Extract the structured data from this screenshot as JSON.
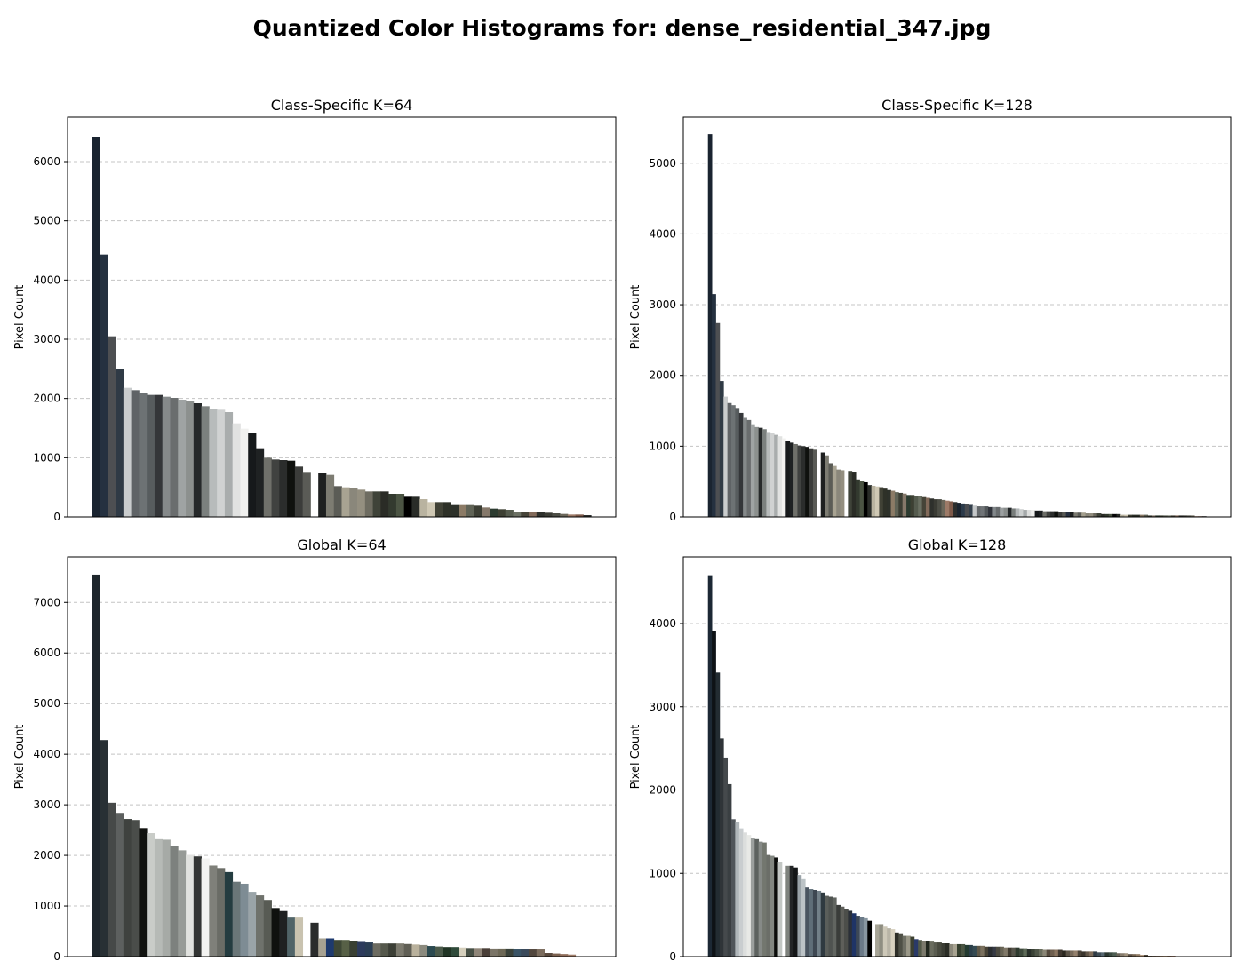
{
  "figure": {
    "title": "Quantized Color Histograms for: dense_residential_347.jpg"
  },
  "chart_data": [
    {
      "type": "bar",
      "title": "Class-Specific K=64",
      "xlabel": "",
      "ylabel": "Pixel Count",
      "ylim": [
        0,
        6750
      ],
      "yticks": [
        0,
        1000,
        2000,
        3000,
        4000,
        5000,
        6000
      ],
      "grid": "y-dashed",
      "xticks": "none",
      "values": [
        6420,
        4430,
        3050,
        2500,
        2180,
        2140,
        2090,
        2060,
        2060,
        2030,
        2010,
        1980,
        1950,
        1920,
        1870,
        1830,
        1810,
        1770,
        1580,
        1490,
        1420,
        1160,
        1000,
        970,
        960,
        950,
        850,
        760,
        0,
        740,
        710,
        520,
        500,
        490,
        460,
        430,
        430,
        430,
        390,
        390,
        340,
        340,
        300,
        250,
        250,
        250,
        200,
        200,
        200,
        190,
        160,
        140,
        130,
        120,
        90,
        90,
        80,
        80,
        70,
        60,
        50,
        40,
        40,
        30
      ],
      "colors": [
        "#1a2430",
        "#253140",
        "#4d4f52",
        "#2f3a45",
        "#c9cccd",
        "#5f6366",
        "#6d7274",
        "#575c5e",
        "#343639",
        "#85898a",
        "#6a6d6e",
        "#9fa3a3",
        "#8c908e",
        "#26292a",
        "#7b807e",
        "#b7bbbb",
        "#d0d2d2",
        "#a9adad",
        "#e1e2e1",
        "#f1f1ef",
        "#16191b",
        "#1f2223",
        "#6f706a",
        "#404240",
        "#2b2d2c",
        "#0f110e",
        "#3b3c3a",
        "#5a5b56",
        "#ffffff",
        "#1e2020",
        "#7d7c72",
        "#5b5c56",
        "#a8a392",
        "#8a877b",
        "#948f80",
        "#6e6c61",
        "#3f4339",
        "#2a2c26",
        "#333a2f",
        "#4b5443",
        "#000000",
        "#292c28",
        "#b9b3a0",
        "#cfc8b4",
        "#414236",
        "#2e3128",
        "#2d312a",
        "#8c7b66",
        "#606356",
        "#3c3e34",
        "#85786a",
        "#2c3b30",
        "#3d4033",
        "#555b4e",
        "#6b7063",
        "#464438",
        "#826a5a",
        "#2e302c",
        "#3a3b34",
        "#4d4e46",
        "#6b675a",
        "#9d7a67",
        "#7e5a4a",
        "#2d2f2e"
      ]
    },
    {
      "type": "bar",
      "title": "Class-Specific K=128",
      "xlabel": "",
      "ylabel": "Pixel Count",
      "ylim": [
        0,
        5650
      ],
      "yticks": [
        0,
        1000,
        2000,
        3000,
        4000,
        5000
      ],
      "grid": "y-dashed",
      "xticks": "none",
      "values": [
        5410,
        3150,
        2740,
        1920,
        1700,
        1610,
        1580,
        1540,
        1470,
        1400,
        1370,
        1310,
        1270,
        1260,
        1240,
        1200,
        1190,
        1160,
        1140,
        1110,
        1080,
        1050,
        1030,
        1010,
        1000,
        990,
        970,
        950,
        930,
        910,
        870,
        760,
        720,
        670,
        660,
        0,
        650,
        640,
        530,
        510,
        490,
        450,
        440,
        430,
        420,
        400,
        380,
        370,
        350,
        340,
        330,
        310,
        310,
        300,
        290,
        280,
        270,
        260,
        250,
        250,
        240,
        230,
        220,
        210,
        200,
        190,
        180,
        170,
        160,
        150,
        150,
        150,
        140,
        140,
        140,
        130,
        130,
        130,
        120,
        120,
        110,
        100,
        100,
        100,
        90,
        90,
        80,
        80,
        80,
        80,
        70,
        70,
        70,
        70,
        60,
        60,
        60,
        50,
        50,
        50,
        50,
        40,
        40,
        40,
        40,
        40,
        30,
        30,
        30,
        30,
        30,
        30,
        30,
        20,
        20,
        20,
        20,
        20,
        20,
        20,
        20,
        20,
        20,
        20,
        20,
        10,
        10,
        10
      ],
      "colors": [
        "#1a2430",
        "#253140",
        "#4d4f52",
        "#2f3a45",
        "#c9cccd",
        "#5f6366",
        "#6d7274",
        "#575c5e",
        "#343639",
        "#85898a",
        "#6a6d6e",
        "#9fa3a3",
        "#8c908e",
        "#26292a",
        "#7b807e",
        "#b7bbbb",
        "#d0d2d2",
        "#a9adad",
        "#e1e2e1",
        "#f1f1ef",
        "#16191b",
        "#1f2223",
        "#6f706a",
        "#404240",
        "#2b2d2c",
        "#0f110e",
        "#3b3c3a",
        "#5a5b56",
        "#ffffff",
        "#1e2020",
        "#7d7c72",
        "#5b5c56",
        "#a8a392",
        "#8a877b",
        "#948f80",
        "#6e6c61",
        "#3f4339",
        "#2a2c26",
        "#333a2f",
        "#4b5443",
        "#000000",
        "#292c28",
        "#b9b3a0",
        "#cfc8b4",
        "#414236",
        "#2e3128",
        "#2d312a",
        "#8c7b66",
        "#606356",
        "#3c3e34",
        "#85786a",
        "#2c3b30",
        "#3d4033",
        "#555b4e",
        "#6b7063",
        "#464438",
        "#826a5a",
        "#2e302c",
        "#3a3b34",
        "#4d4e46",
        "#6b675a",
        "#9d7a67",
        "#7e5a4a",
        "#2d2f2e",
        "#1c2530",
        "#2b3a4a",
        "#4a4c50",
        "#34404c",
        "#c4c7c8",
        "#64686b",
        "#707477",
        "#52575a",
        "#30333a",
        "#82878a",
        "#686c6e",
        "#9ca0a1",
        "#898d8c",
        "#232628",
        "#787d7b",
        "#b3b7b8",
        "#cccfcf",
        "#a5a9aa",
        "#dddedd",
        "#eeeeec",
        "#14171a",
        "#1d2022",
        "#6c6d67",
        "#3e403e",
        "#2a2c2b",
        "#0d0f0c",
        "#393a38",
        "#585954",
        "#262f3f",
        "#1c1e1e",
        "#7a796f",
        "#595a54",
        "#a49f8e",
        "#878478",
        "#918c7d",
        "#6b695e",
        "#3d4137",
        "#282a24",
        "#31382d",
        "#495241",
        "#050505",
        "#272a26",
        "#b5af9c",
        "#cbc4b0",
        "#3f4034",
        "#2c2f26",
        "#2b2f28",
        "#887763",
        "#5e6154",
        "#3a3c32",
        "#827567",
        "#2a392e",
        "#3b3e31",
        "#53594c",
        "#696e61",
        "#444236",
        "#806858",
        "#2c2e2a",
        "#383932",
        "#4b4c44",
        "#696558",
        "#9a7765",
        "#7c5848",
        "#2b2d2c"
      ]
    },
    {
      "type": "bar",
      "title": "Global K=64",
      "xlabel": "",
      "ylabel": "Pixel Count",
      "ylim": [
        0,
        7900
      ],
      "yticks": [
        0,
        1000,
        2000,
        3000,
        4000,
        5000,
        6000,
        7000
      ],
      "grid": "y-dashed",
      "xticks": "none",
      "values": [
        7550,
        4280,
        3040,
        2840,
        2720,
        2700,
        2540,
        2440,
        2320,
        2310,
        2190,
        2100,
        2010,
        1980,
        1940,
        1800,
        1750,
        1670,
        1480,
        1440,
        1280,
        1210,
        1120,
        960,
        900,
        770,
        770,
        0,
        670,
        360,
        360,
        330,
        330,
        310,
        290,
        280,
        260,
        260,
        260,
        260,
        250,
        240,
        230,
        210,
        200,
        190,
        190,
        180,
        170,
        170,
        170,
        160,
        160,
        160,
        150,
        150,
        140,
        140,
        70,
        60,
        50,
        40,
        0,
        0
      ],
      "colors": [
        "#1e262c",
        "#283034",
        "#464948",
        "#5d605f",
        "#3f423f",
        "#4a4d4a",
        "#10120f",
        "#c9ccc8",
        "#b6bab6",
        "#a6aaa6",
        "#7d817e",
        "#979b97",
        "#e1e2df",
        "#333534",
        "#f3f3f1",
        "#7f807a",
        "#6a6c66",
        "#243c40",
        "#6a7678",
        "#7e8c94",
        "#9aa4a8",
        "#6f726c",
        "#585b54",
        "#0f110e",
        "#1f2122",
        "#506468",
        "#c9c3b0",
        "#ffffff",
        "#2a2c2c",
        "#a7a292",
        "#1e3a6e",
        "#3e4735",
        "#576046",
        "#394033",
        "#2d3b5c",
        "#2b3e54",
        "#6c6b60",
        "#55584c",
        "#3c3f36",
        "#7c7a6e",
        "#605f55",
        "#b9b19c",
        "#8b8a7e",
        "#2c4a50",
        "#4b5a4a",
        "#213525",
        "#2f4a3a",
        "#d5cfbc",
        "#475045",
        "#8f8578",
        "#4a3f38",
        "#7a7466",
        "#6d6856",
        "#3a423a",
        "#3a5466",
        "#3b4a5b",
        "#52473e",
        "#7c6d5e",
        "#5a4a3e",
        "#7d6250",
        "#8f6d5a",
        "#a07e6a",
        "#ffffff",
        "#ffffff"
      ]
    },
    {
      "type": "bar",
      "title": "Global K=128",
      "xlabel": "",
      "ylabel": "Pixel Count",
      "ylim": [
        0,
        4800
      ],
      "yticks": [
        0,
        1000,
        2000,
        3000,
        4000
      ],
      "grid": "y-dashed",
      "xticks": "none",
      "values": [
        4580,
        3910,
        3410,
        2620,
        2390,
        2070,
        1650,
        1620,
        1540,
        1490,
        1460,
        1420,
        1410,
        1380,
        1370,
        1220,
        1210,
        1190,
        1140,
        0,
        1090,
        1090,
        1070,
        980,
        930,
        830,
        810,
        800,
        790,
        770,
        730,
        720,
        710,
        620,
        600,
        570,
        550,
        520,
        490,
        480,
        460,
        430,
        0,
        390,
        390,
        360,
        340,
        330,
        290,
        270,
        250,
        250,
        240,
        210,
        200,
        190,
        190,
        180,
        170,
        170,
        160,
        160,
        150,
        150,
        150,
        150,
        140,
        140,
        130,
        130,
        130,
        120,
        120,
        120,
        120,
        120,
        110,
        110,
        110,
        110,
        100,
        100,
        90,
        90,
        90,
        90,
        80,
        80,
        80,
        80,
        80,
        70,
        70,
        70,
        70,
        70,
        60,
        60,
        60,
        60,
        50,
        50,
        50,
        50,
        50,
        40,
        40,
        40,
        30,
        30,
        30,
        20,
        20,
        10,
        10,
        10,
        10,
        10,
        10,
        10,
        0,
        0,
        0,
        0,
        0,
        0,
        0,
        0
      ],
      "colors": [
        "#1c2834",
        "#0e1216",
        "#232c32",
        "#2f3438",
        "#45494c",
        "#3a3f42",
        "#50555a",
        "#b0b6ba",
        "#c9cdcf",
        "#dcdedd",
        "#e8e9e6",
        "#9ca09e",
        "#5d625f",
        "#868a87",
        "#73776f",
        "#6b6e68",
        "#828680",
        "#0b0c0a",
        "#c3c7c4",
        "#ffffff",
        "#7e827d",
        "#232526",
        "#141617",
        "#9aa3a8",
        "#bcc3c6",
        "#4a5560",
        "#5f6e78",
        "#3e4852",
        "#728088",
        "#2f3a40",
        "#5a5e5a",
        "#4f5350",
        "#616560",
        "#3a3d3a",
        "#5e5f5a",
        "#4c4e4a",
        "#2b3038",
        "#1f3466",
        "#3d4856",
        "#6b7a88",
        "#8896a0",
        "#000000",
        "#ffffff",
        "#a6a496",
        "#8f8e82",
        "#cdc8b8",
        "#b8b4a6",
        "#d8d2c0",
        "#2e2f28",
        "#4e5046",
        "#6e6f64",
        "#9a9888",
        "#3c4030",
        "#2a3a68",
        "#535a48",
        "#7c7a6c",
        "#22281f",
        "#6a6c5e",
        "#5a5c50",
        "#484a3f",
        "#3b3d34",
        "#2b2d26",
        "#8b887a",
        "#a8a391",
        "#36402f",
        "#4a5442",
        "#233a30",
        "#2b3f4a",
        "#344a52",
        "#5f5848",
        "#7a705e",
        "#474236",
        "#2a2d30",
        "#363a44",
        "#4c4a40",
        "#686455",
        "#807868",
        "#3f3a30",
        "#56544a",
        "#2e3a2e",
        "#3e4a3c",
        "#5e6a58",
        "#29302a",
        "#3a4236",
        "#4f5648",
        "#6a6e5e",
        "#8a8676",
        "#554a3e",
        "#6e5e4e",
        "#8a7460",
        "#403830",
        "#2c2820",
        "#5c5448",
        "#786a5a",
        "#94806c",
        "#4a4238",
        "#3a342c",
        "#625648",
        "#7e6c5a",
        "#2f3a44",
        "#3e4c56",
        "#566670",
        "#2a3630",
        "#3a4a40",
        "#4e5e52",
        "#6a6458",
        "#867c6c",
        "#a0927e",
        "#5a4e42",
        "#74644f",
        "#907a62",
        "#aa8e74",
        "#3c3428",
        "#524638",
        "#6a5a48",
        "#806c58",
        "#9c8266",
        "#b49878",
        "#8a6a56",
        "#a07e66",
        "#6e5444",
        "#4a3a30",
        "#584638",
        "#705a48",
        "#886c56",
        "#a08066",
        "#b8967a",
        "#c8a88a"
      ]
    }
  ]
}
